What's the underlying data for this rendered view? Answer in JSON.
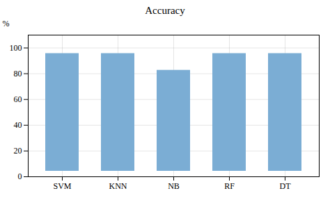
{
  "chart_data": {
    "type": "bar",
    "title": "Accuracy",
    "ylabel": "%",
    "categories": [
      "SVM",
      "KNN",
      "NB",
      "RF",
      "DT"
    ],
    "values": [
      100,
      100,
      87,
      100,
      100
    ],
    "color": "#7BADD4",
    "ylim": [
      0,
      110
    ],
    "yticks": [
      0,
      20,
      40,
      60,
      80,
      100
    ],
    "grid": true
  }
}
